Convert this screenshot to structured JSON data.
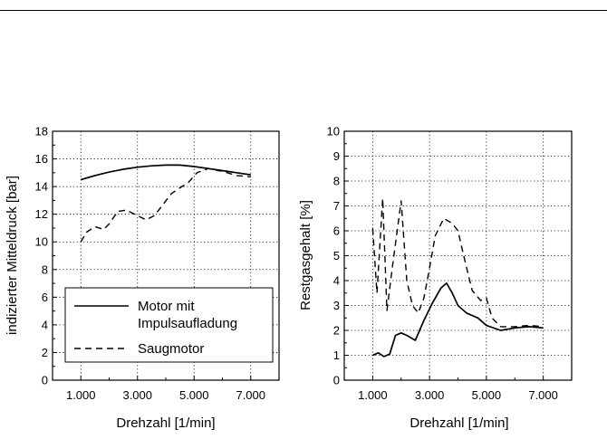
{
  "chart_data": [
    {
      "type": "line",
      "xlabel": "Drehzahl [1/min]",
      "ylabel": "indizierter Mitteldruck [bar]",
      "xlim": [
        0,
        8000
      ],
      "ylim": [
        0,
        18
      ],
      "xticks": [
        "1.000",
        "3.000",
        "5.000",
        "7.000"
      ],
      "xtick_values": [
        1000,
        3000,
        5000,
        7000
      ],
      "yticks": [
        "0",
        "2",
        "4",
        "6",
        "8",
        "10",
        "12",
        "14",
        "16",
        "18"
      ],
      "ytick_values": [
        0,
        2,
        4,
        6,
        8,
        10,
        12,
        14,
        16,
        18
      ],
      "grid": true,
      "legend_position": "bottom-left",
      "series": [
        {
          "name": "Motor mit Impulsaufladung",
          "legend_lines": [
            "Motor mit",
            "Impulsaufladung"
          ],
          "style": "solid",
          "x": [
            1000,
            1500,
            2000,
            2500,
            3000,
            3500,
            4000,
            4500,
            5000,
            5500,
            6000,
            6500,
            7000
          ],
          "y": [
            14.5,
            14.8,
            15.05,
            15.25,
            15.4,
            15.5,
            15.55,
            15.55,
            15.45,
            15.3,
            15.15,
            15.0,
            14.85
          ]
        },
        {
          "name": "Saugmotor",
          "legend_lines": [
            "Saugmotor"
          ],
          "style": "dashed",
          "x": [
            1000,
            1200,
            1500,
            1800,
            2000,
            2300,
            2600,
            2800,
            3000,
            3300,
            3600,
            3900,
            4200,
            4500,
            4800,
            5100,
            5500,
            6000,
            6500,
            7000
          ],
          "y": [
            10.0,
            10.7,
            11.1,
            10.9,
            11.3,
            12.2,
            12.3,
            12.1,
            11.9,
            11.6,
            11.9,
            12.7,
            13.5,
            13.9,
            14.3,
            15.0,
            15.3,
            15.1,
            14.8,
            14.7
          ]
        }
      ]
    },
    {
      "type": "line",
      "xlabel": "Drehzahl [1/min]",
      "ylabel": "Restgasgehalt [%]",
      "xlim": [
        0,
        8000
      ],
      "ylim": [
        0,
        10
      ],
      "xticks": [
        "1.000",
        "3.000",
        "5.000",
        "7.000"
      ],
      "xtick_values": [
        1000,
        3000,
        5000,
        7000
      ],
      "yticks": [
        "0",
        "1",
        "2",
        "3",
        "4",
        "5",
        "6",
        "7",
        "8",
        "9",
        "10"
      ],
      "ytick_values": [
        0,
        1,
        2,
        3,
        4,
        5,
        6,
        7,
        8,
        9,
        10
      ],
      "grid": true,
      "series": [
        {
          "name": "Motor mit Impulsaufladung",
          "style": "solid",
          "x": [
            1000,
            1200,
            1400,
            1600,
            1800,
            2000,
            2200,
            2500,
            2800,
            3100,
            3400,
            3600,
            3800,
            4000,
            4300,
            4700,
            5000,
            5500,
            6000,
            6500,
            7000
          ],
          "y": [
            1.0,
            1.1,
            0.95,
            1.05,
            1.8,
            1.9,
            1.8,
            1.6,
            2.4,
            3.1,
            3.7,
            3.9,
            3.5,
            3.0,
            2.7,
            2.5,
            2.2,
            2.0,
            2.1,
            2.15,
            2.1
          ]
        },
        {
          "name": "Saugmotor",
          "style": "dashed",
          "x": [
            1000,
            1150,
            1350,
            1500,
            1700,
            2000,
            2200,
            2400,
            2600,
            2800,
            3000,
            3200,
            3500,
            3800,
            4000,
            4200,
            4500,
            4800,
            5000,
            5200,
            5500,
            6000,
            6500,
            7000
          ],
          "y": [
            6.1,
            3.5,
            7.3,
            2.8,
            4.6,
            7.2,
            4.0,
            3.0,
            2.7,
            3.3,
            4.5,
            5.8,
            6.5,
            6.3,
            6.0,
            5.0,
            3.6,
            3.2,
            3.3,
            2.5,
            2.15,
            2.15,
            2.2,
            2.15
          ]
        }
      ]
    }
  ]
}
